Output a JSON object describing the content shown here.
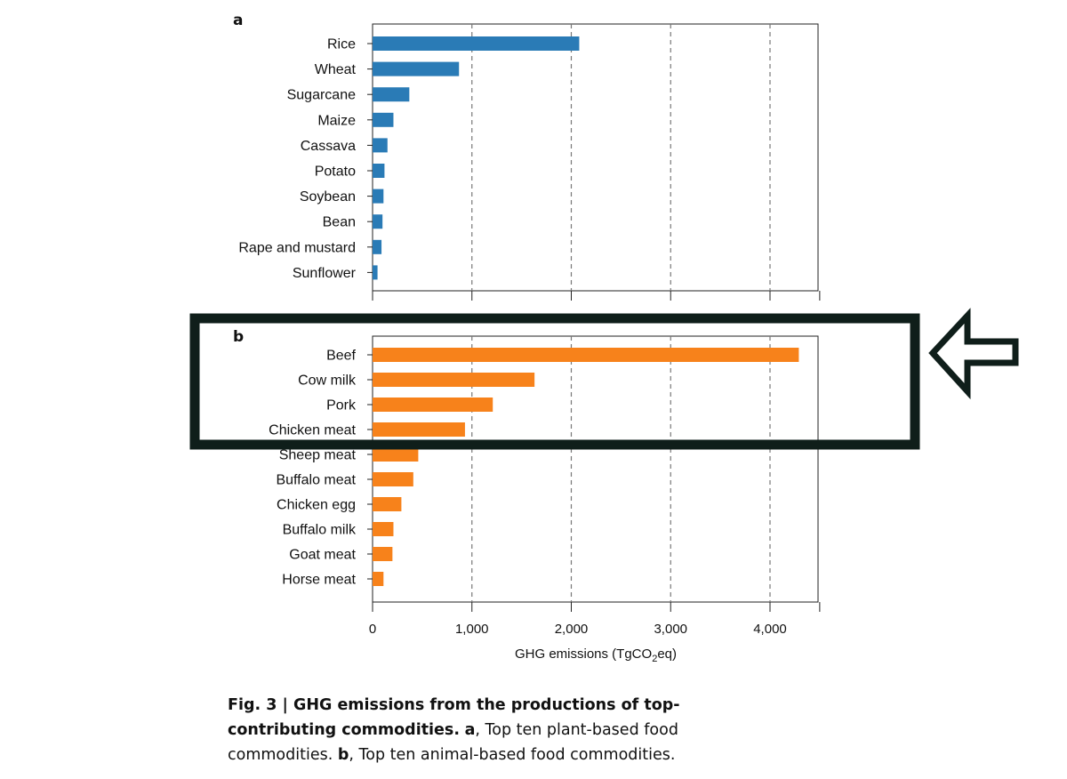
{
  "colors": {
    "plant": "#2a7bb6",
    "animal": "#f7821b",
    "highlight": "#0f1e1a"
  },
  "chart_data": [
    {
      "type": "bar",
      "orientation": "horizontal",
      "panel": "a",
      "categories": [
        "Rice",
        "Wheat",
        "Sugarcane",
        "Maize",
        "Cassava",
        "Potato",
        "Soybean",
        "Bean",
        "Rape and mustard",
        "Sunflower"
      ],
      "values": [
        2080,
        870,
        370,
        210,
        150,
        120,
        110,
        100,
        90,
        50
      ],
      "xlim": [
        0,
        4500
      ],
      "grid": "vertical dashed at 1000, 2000, 3000, 4000"
    },
    {
      "type": "bar",
      "orientation": "horizontal",
      "panel": "b",
      "categories": [
        "Beef",
        "Cow milk",
        "Pork",
        "Chicken meat",
        "Sheep meat",
        "Buffalo meat",
        "Chicken egg",
        "Buffalo milk",
        "Goat meat",
        "Horse meat"
      ],
      "values": [
        4290,
        1630,
        1210,
        930,
        460,
        410,
        290,
        210,
        200,
        110
      ],
      "xlim": [
        0,
        4500
      ],
      "xticks": [
        "0",
        "1,000",
        "2,000",
        "3,000",
        "4,000"
      ],
      "xlabel_prefix": "GHG emissions (TgCO",
      "xlabel_sub": "2",
      "xlabel_suffix": "eq)",
      "grid": "vertical dashed at 1000, 2000, 3000, 4000"
    }
  ],
  "caption": {
    "fig_label": "Fig. 3 | GHG emissions from the productions of top-contributing commodities.",
    "a": "a",
    "a_text": ", Top ten plant-based food commodities.",
    "b": "b",
    "b_text": ", Top ten animal-based food commodities."
  }
}
